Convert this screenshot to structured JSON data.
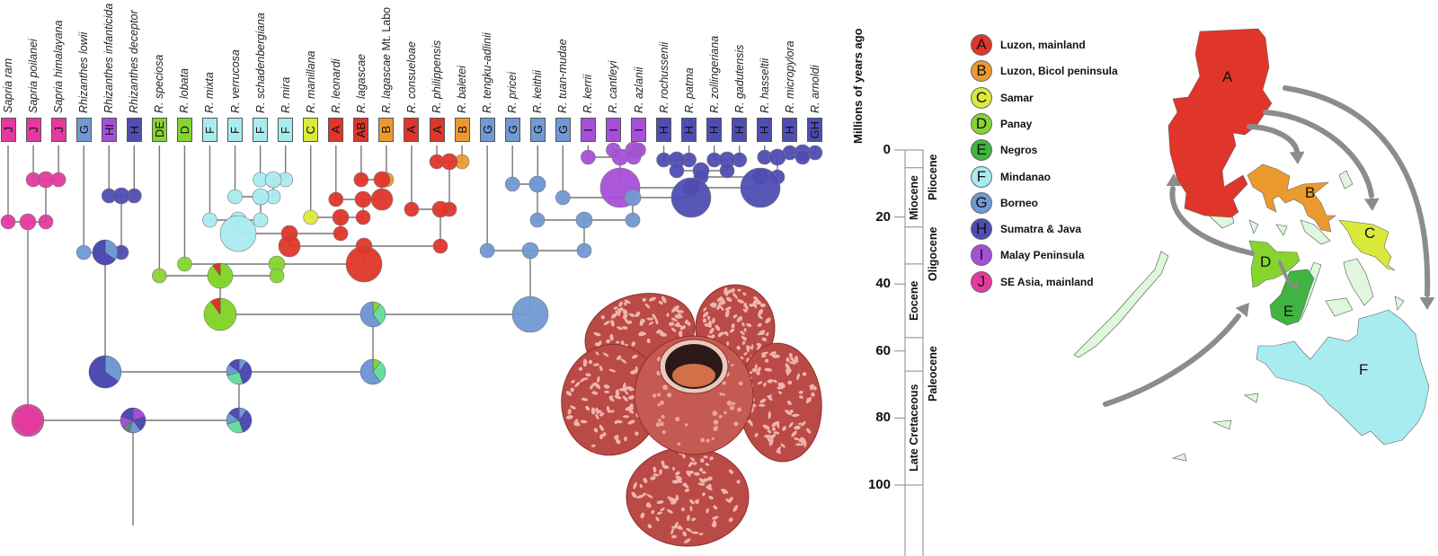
{
  "tips": [
    {
      "name": "Sapria ram",
      "area": "J"
    },
    {
      "name": "Sapria poilanei",
      "area": "J"
    },
    {
      "name": "Sapria himalayana",
      "area": "J"
    },
    {
      "name": "Rhizanthes lowii",
      "area": "G"
    },
    {
      "name": "Rhizanthes infanticida",
      "area": "HI"
    },
    {
      "name": "Rhizanthes deceptor",
      "area": "H"
    },
    {
      "name": "R. speciosa",
      "area": "DE"
    },
    {
      "name": "R. lobata",
      "area": "D"
    },
    {
      "name": "R. mixta",
      "area": "F"
    },
    {
      "name": "R. verrucosa",
      "area": "F"
    },
    {
      "name": "R. schadenbergiana",
      "area": "F"
    },
    {
      "name": "R. mira",
      "area": "F"
    },
    {
      "name": "R. manillana",
      "area": "C"
    },
    {
      "name": "R. leonardi",
      "area": "A"
    },
    {
      "name": "R. lagascae",
      "area": "AB"
    },
    {
      "name": "R. lagascae",
      "suffix": " Mt. Labo",
      "area": "B"
    },
    {
      "name": "R. consueloae",
      "area": "A"
    },
    {
      "name": "R. philippensis",
      "area": "A"
    },
    {
      "name": "R. baletei",
      "area": "B"
    },
    {
      "name": "R. tengku-adlinii",
      "area": "G"
    },
    {
      "name": "R. pricei",
      "area": "G"
    },
    {
      "name": "R. keithii",
      "area": "G"
    },
    {
      "name": "R. tuan-mudae",
      "area": "G"
    },
    {
      "name": "R. kerrii",
      "area": "I"
    },
    {
      "name": "R. cantleyi",
      "area": "I"
    },
    {
      "name": "R. azlanii",
      "area": "I"
    },
    {
      "name": "R. rochussenii",
      "area": "H"
    },
    {
      "name": "R. patma",
      "area": "H"
    },
    {
      "name": "R. zollingeriana",
      "area": "H"
    },
    {
      "name": "R. gadutensis",
      "area": "H"
    },
    {
      "name": "R. hasseltii",
      "area": "H"
    },
    {
      "name": "R. micropylora",
      "area": "H"
    },
    {
      "name": "R. arnoldi",
      "area": "GH"
    }
  ],
  "area_colors": {
    "A": "#e0352a",
    "B": "#eb9a30",
    "C": "#dbea3a",
    "D": "#86d52f",
    "E": "#3fb440",
    "F": "#a9ecf0",
    "G": "#7199d4",
    "H": "#4f4db3",
    "I": "#a64fd8",
    "J": "#e43a9f",
    "AB": "#e0352a",
    "DE": "#86d52f",
    "HI": "#a64fd8",
    "GH": "#4f4db3"
  },
  "timescale": {
    "title": "Millions of years ago",
    "ticks": [
      "0",
      "20",
      "40",
      "60",
      "80",
      "100"
    ],
    "tick_values": [
      0,
      20,
      40,
      60,
      80,
      100
    ],
    "epochs_inner": [
      {
        "name": "",
        "from": 0,
        "to": 5.3
      },
      {
        "name": "Miocene",
        "from": 5.3,
        "to": 23
      },
      {
        "name": "",
        "from": 23,
        "to": 34
      },
      {
        "name": "Eocene",
        "from": 34,
        "to": 56
      },
      {
        "name": "",
        "from": 56,
        "to": 66
      },
      {
        "name": "Late Cretaceous",
        "from": 66,
        "to": 100
      }
    ],
    "epochs_outer": [
      {
        "name": "Pliocene",
        "from": 0,
        "to": 5.3
      },
      {
        "name": "Oligocene",
        "from": 23,
        "to": 34
      },
      {
        "name": "Paleocene",
        "from": 56,
        "to": 66
      }
    ]
  },
  "legend": [
    {
      "code": "A",
      "label": "Luzon, mainland"
    },
    {
      "code": "B",
      "label": "Luzon, Bicol peninsula"
    },
    {
      "code": "C",
      "label": "Samar"
    },
    {
      "code": "D",
      "label": "Panay"
    },
    {
      "code": "E",
      "label": "Negros"
    },
    {
      "code": "F",
      "label": "Mindanao"
    },
    {
      "code": "G",
      "label": "Borneo"
    },
    {
      "code": "H",
      "label": "Sumatra & Java"
    },
    {
      "code": "I",
      "label": "Malay Peninsula"
    },
    {
      "code": "J",
      "label": "SE Asia, mainland"
    }
  ],
  "map": {
    "labels": [
      "A",
      "B",
      "C",
      "D",
      "E",
      "F"
    ],
    "island_color": "#dff7dc",
    "arrow_color": "#8c8c8c"
  }
}
